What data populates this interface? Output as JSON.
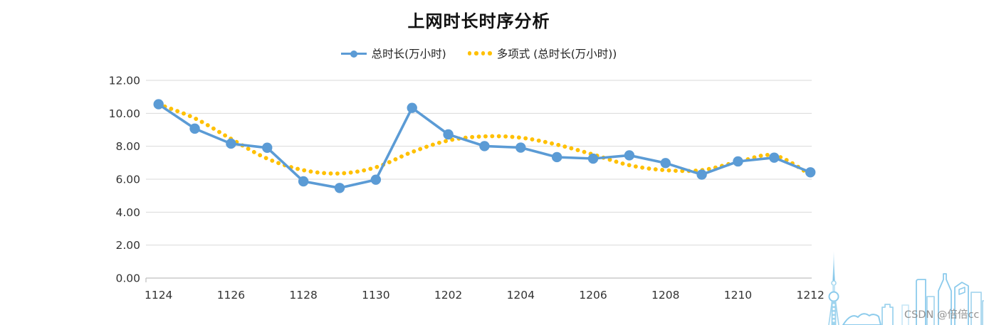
{
  "chart_data": {
    "type": "line",
    "title": "上网时长时序分析",
    "xlabel": "",
    "ylabel": "",
    "ylim": [
      0,
      12
    ],
    "y_tick_labels": [
      "0.00",
      "2.00",
      "4.00",
      "6.00",
      "8.00",
      "10.00",
      "12.00"
    ],
    "categories": [
      "1124",
      "1125",
      "1126",
      "1127",
      "1128",
      "1129",
      "1130",
      "1201",
      "1202",
      "1203",
      "1204",
      "1205",
      "1206",
      "1207",
      "1208",
      "1209",
      "1210",
      "1211",
      "1212"
    ],
    "x_tick_labels": [
      "1124",
      "1126",
      "1128",
      "1130",
      "1202",
      "1204",
      "1206",
      "1208",
      "1210",
      "1212"
    ],
    "x_label_interval": 2,
    "grid": "horizontal",
    "legend_position": "top",
    "series": [
      {
        "name": "总时长(万小时)",
        "style": "line-with-markers",
        "color": "#5B9BD5",
        "values": [
          10.55,
          9.07,
          8.16,
          7.91,
          5.87,
          5.47,
          5.97,
          10.33,
          8.72,
          8.01,
          7.92,
          7.34,
          7.25,
          7.45,
          6.98,
          6.28,
          7.08,
          7.31,
          6.42
        ]
      },
      {
        "name": "多项式 (总时长(万小时))",
        "style": "dotted-trendline",
        "color": "#FFC000",
        "values": [
          10.55,
          9.7,
          8.45,
          7.25,
          6.55,
          6.35,
          6.72,
          7.65,
          8.35,
          8.6,
          8.52,
          8.1,
          7.5,
          6.85,
          6.55,
          6.55,
          7.05,
          7.45,
          6.27
        ]
      }
    ]
  },
  "colors": {
    "series_total": "#5B9BD5",
    "series_poly": "#FFC000",
    "gridline": "#D9D9D9",
    "axis_line": "#BFBFBF",
    "axis_text": "#333333",
    "skyline_blue": "#8CCBEC"
  },
  "watermark": "CSDN @倍倍cc"
}
